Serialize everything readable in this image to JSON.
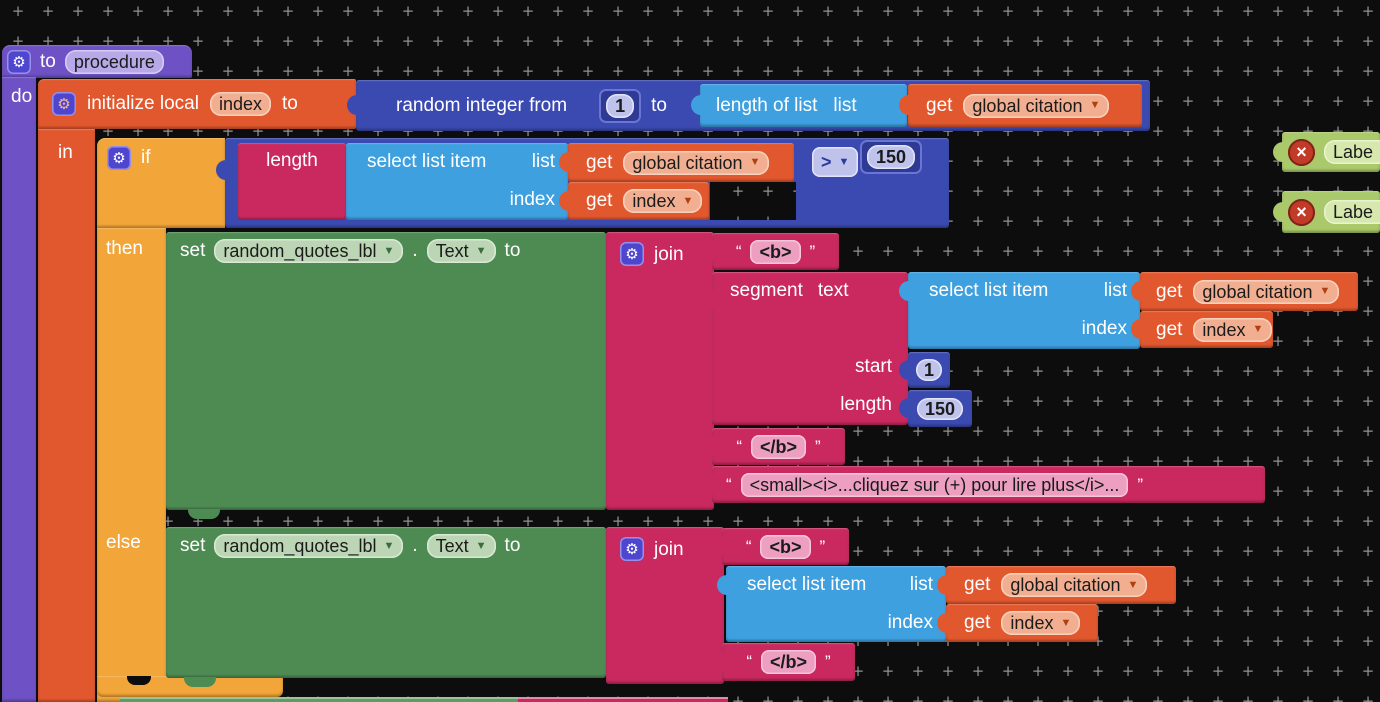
{
  "palette": {
    "background": "#0d0d0e",
    "grid_plus": "#929292",
    "procedure_purple": "#6e51c5",
    "variables_orange": "#e2582e",
    "control_yellow": "#f2a538",
    "math_blue": "#3b4ab0",
    "lists_blue": "#3fa0e0",
    "text_pink": "#c9295f",
    "setter_green": "#4e8b53",
    "component_green": "#aac96b",
    "error_red": "#c23a28"
  },
  "procedure": {
    "to": "to",
    "name": "procedure",
    "do": "do"
  },
  "init_local": {
    "label": "initialize local",
    "var": "index",
    "to": "to",
    "in": "in"
  },
  "random_int": {
    "label": "random integer from",
    "from": "1",
    "to": "to"
  },
  "length_of_list": {
    "label": "length of list",
    "list": "list"
  },
  "get_block": {
    "get": "get",
    "global_citation": "global citation",
    "index": "index"
  },
  "if_block": {
    "if": "if",
    "then": "then",
    "else": "else"
  },
  "length_block": {
    "label": "length"
  },
  "select_list_item": {
    "label": "select list item",
    "list": "list",
    "index": "index"
  },
  "compare": {
    "op": ">",
    "value": "150"
  },
  "setter": {
    "set": "set",
    "component": "random_quotes_lbl",
    "dot": ".",
    "property": "Text",
    "to": "to"
  },
  "join_block": {
    "label": "join"
  },
  "strings": {
    "q_open": "“",
    "q_close": "”",
    "b_open": "<b>",
    "b_close": "</b>",
    "more": "<small><i>...cliquez sur (+) pour lire plus</i>..."
  },
  "segment_block": {
    "segment": "segment",
    "text": "text",
    "start": "start",
    "start_value": "1",
    "length": "length",
    "length_value": "150"
  },
  "label_component": {
    "name": "Labe"
  }
}
